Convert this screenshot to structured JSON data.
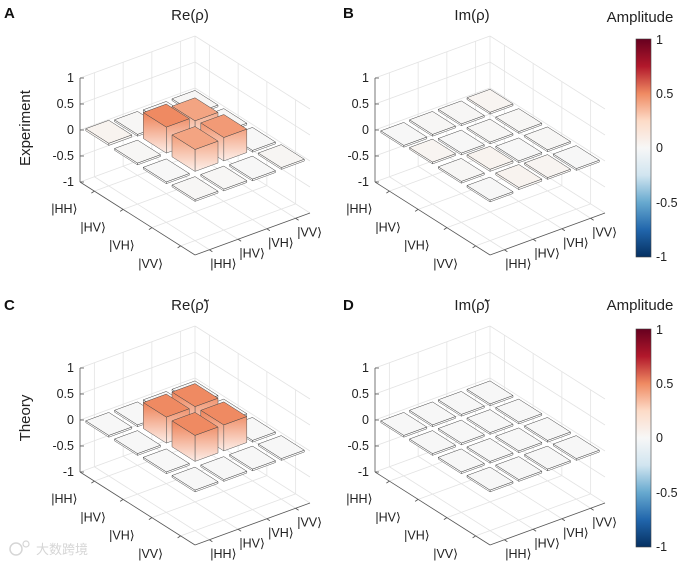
{
  "figure": {
    "panel_letters": [
      "A",
      "B",
      "C",
      "D"
    ],
    "row_labels": [
      "Experiment",
      "Theory"
    ],
    "colorbar_title": "Amplitude",
    "colorbar_ticks": [
      "1",
      "0.5",
      "0",
      "-0.5",
      "-1"
    ],
    "watermark": "大数跨境"
  },
  "colors": {
    "colormap": [
      "#053061",
      "#2166ac",
      "#67a9cf",
      "#d1e5f0",
      "#f7f7f7",
      "#fddbc7",
      "#ef8a62",
      "#b2182b",
      "#67001f"
    ],
    "grid": "#e3e3e3",
    "axis": "#555555"
  },
  "chart_data": [
    {
      "type": "bar",
      "variant": "3d-bar-matrix",
      "title": "Re(ρ)",
      "zlabel": "Experiment",
      "zlim": [
        -1,
        1
      ],
      "zticks": [
        "1",
        "0.5",
        "0",
        "-0.5",
        "-1"
      ],
      "row_categories": [
        "|HH⟩",
        "|HV⟩",
        "|VH⟩",
        "|VV⟩"
      ],
      "col_categories": [
        "|HH⟩",
        "|HV⟩",
        "|VH⟩",
        "|VV⟩"
      ],
      "values": [
        [
          0.04,
          0.01,
          0.0,
          0.01
        ],
        [
          0.01,
          0.5,
          0.42,
          0.01
        ],
        [
          0.0,
          0.42,
          0.45,
          0.0
        ],
        [
          0.01,
          0.01,
          0.0,
          0.02
        ]
      ]
    },
    {
      "type": "bar",
      "variant": "3d-bar-matrix",
      "title": "Im(ρ)",
      "zlabel": "",
      "zlim": [
        -1,
        1
      ],
      "zticks": [
        "1",
        "0.5",
        "0",
        "-0.5",
        "-1"
      ],
      "row_categories": [
        "|HH⟩",
        "|HV⟩",
        "|VH⟩",
        "|VV⟩"
      ],
      "col_categories": [
        "|HH⟩",
        "|HV⟩",
        "|VH⟩",
        "|VV⟩"
      ],
      "values": [
        [
          0.0,
          0.01,
          0.01,
          0.03
        ],
        [
          0.03,
          0.0,
          0.01,
          0.01
        ],
        [
          0.01,
          0.04,
          0.0,
          0.01
        ],
        [
          0.0,
          0.04,
          0.03,
          0.0
        ]
      ]
    },
    {
      "type": "bar",
      "variant": "3d-bar-matrix",
      "title": "Re(ρ̃)",
      "zlabel": "Theory",
      "zlim": [
        -1,
        1
      ],
      "zticks": [
        "1",
        "0.5",
        "0",
        "-0.5",
        "-1"
      ],
      "row_categories": [
        "|HH⟩",
        "|HV⟩",
        "|VH⟩",
        "|VV⟩"
      ],
      "col_categories": [
        "|HH⟩",
        "|HV⟩",
        "|VH⟩",
        "|VV⟩"
      ],
      "values": [
        [
          0,
          0,
          0,
          0
        ],
        [
          0,
          0.5,
          0.5,
          0
        ],
        [
          0,
          0.5,
          0.5,
          0
        ],
        [
          0,
          0,
          0,
          0
        ]
      ]
    },
    {
      "type": "bar",
      "variant": "3d-bar-matrix",
      "title": "Im(ρ̃)",
      "zlabel": "",
      "zlim": [
        -1,
        1
      ],
      "zticks": [
        "1",
        "0.5",
        "0",
        "-0.5",
        "-1"
      ],
      "row_categories": [
        "|HH⟩",
        "|HV⟩",
        "|VH⟩",
        "|VV⟩"
      ],
      "col_categories": [
        "|HH⟩",
        "|HV⟩",
        "|VH⟩",
        "|VV⟩"
      ],
      "values": [
        [
          0,
          0,
          0,
          0
        ],
        [
          0,
          0,
          0,
          0
        ],
        [
          0,
          0,
          0,
          0
        ],
        [
          0,
          0,
          0,
          0
        ]
      ]
    }
  ]
}
